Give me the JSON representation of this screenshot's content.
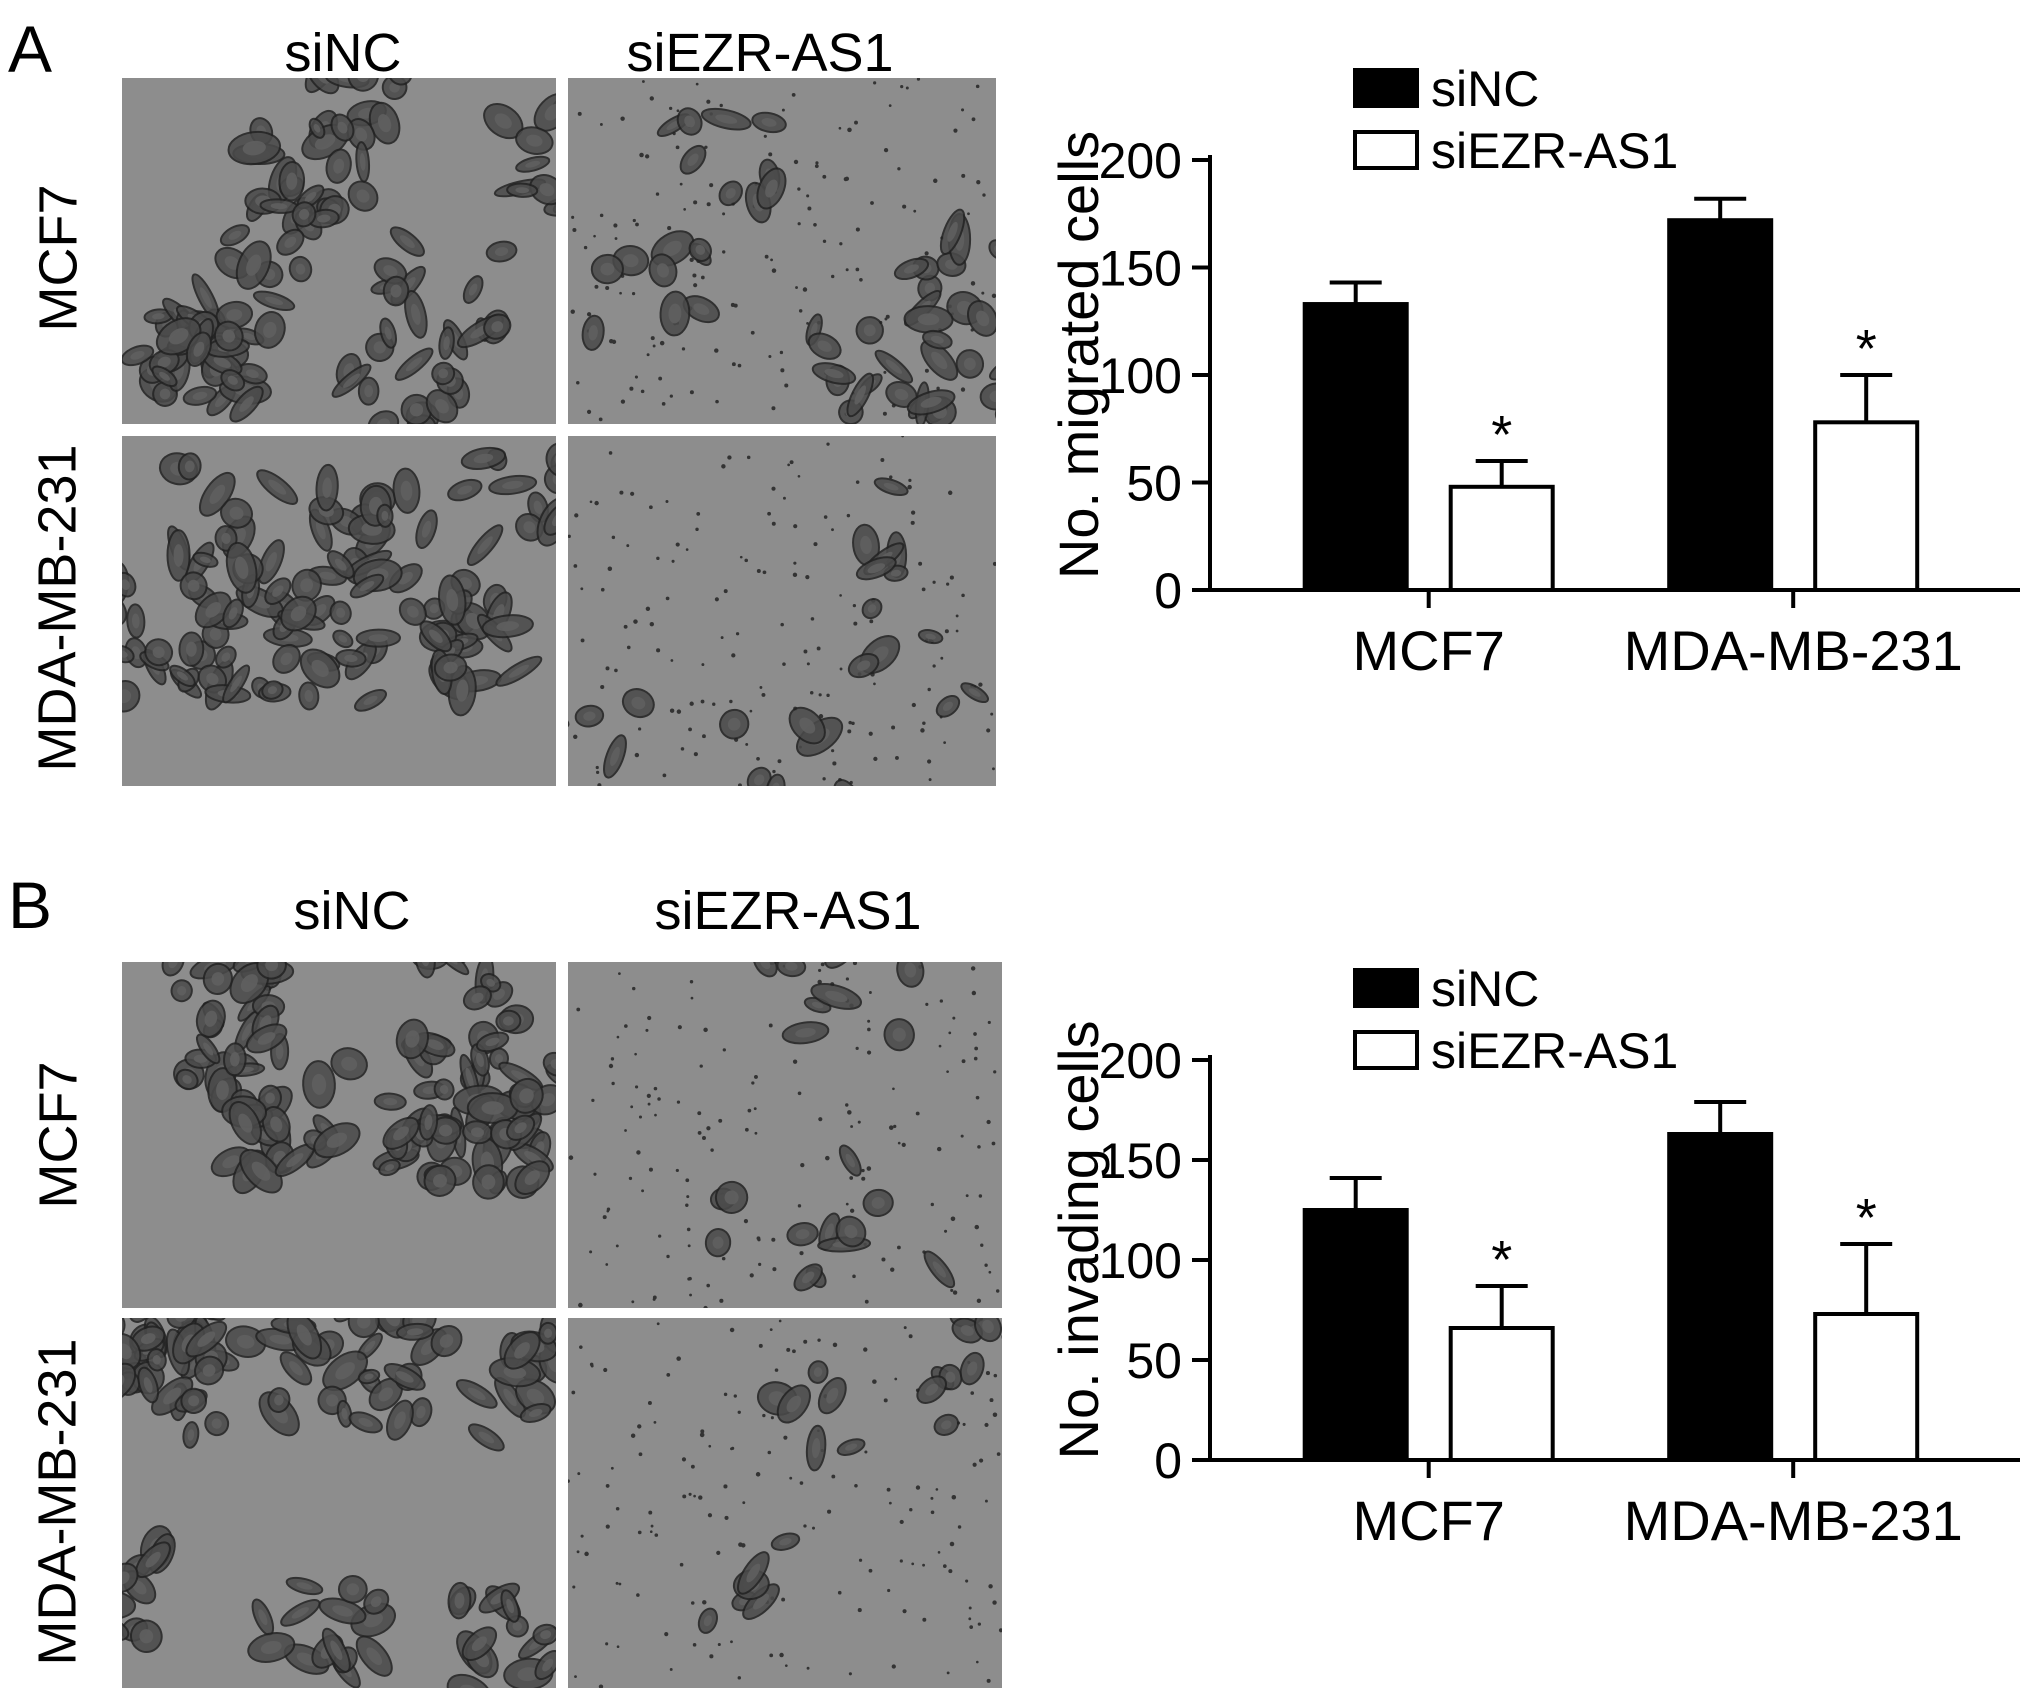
{
  "panels": [
    {
      "letter": "A",
      "columns": [
        "siNC",
        "siEZR-AS1"
      ],
      "rows": [
        "MCF7",
        "MDA-MB-231"
      ]
    },
    {
      "letter": "B",
      "columns": [
        "siNC",
        "siEZR-AS1"
      ],
      "rows": [
        "MCF7",
        "MDA-MB-231"
      ]
    }
  ],
  "colors": {
    "siNC": "#000000",
    "siEZR-AS1": "#ffffff",
    "micrograph_bg": "#8d8d8d",
    "cell": "#3a3a3a"
  },
  "chart_data": [
    {
      "type": "bar",
      "panel": "A",
      "ylabel": "No. migrated cells",
      "categories": [
        "MCF7",
        "MDA-MB-231"
      ],
      "ylim": [
        0,
        200
      ],
      "yticks": [
        0,
        50,
        100,
        150,
        200
      ],
      "legend_position": "top-left",
      "series": [
        {
          "name": "siNC",
          "values": [
            133,
            172
          ],
          "errors": [
            10,
            10
          ]
        },
        {
          "name": "siEZR-AS1",
          "values": [
            48,
            78
          ],
          "errors": [
            12,
            22
          ]
        }
      ],
      "annotations": [
        {
          "series": "siEZR-AS1",
          "category": "MCF7",
          "text": "*"
        },
        {
          "series": "siEZR-AS1",
          "category": "MDA-MB-231",
          "text": "*"
        }
      ]
    },
    {
      "type": "bar",
      "panel": "B",
      "ylabel": "No. invading cells",
      "categories": [
        "MCF7",
        "MDA-MB-231"
      ],
      "ylim": [
        0,
        200
      ],
      "yticks": [
        0,
        50,
        100,
        150,
        200
      ],
      "legend_position": "top-left",
      "series": [
        {
          "name": "siNC",
          "values": [
            125,
            163
          ],
          "errors": [
            16,
            16
          ]
        },
        {
          "name": "siEZR-AS1",
          "values": [
            66,
            73
          ],
          "errors": [
            21,
            35
          ]
        }
      ],
      "annotations": [
        {
          "series": "siEZR-AS1",
          "category": "MCF7",
          "text": "*"
        },
        {
          "series": "siEZR-AS1",
          "category": "MDA-MB-231",
          "text": "*"
        }
      ]
    }
  ]
}
